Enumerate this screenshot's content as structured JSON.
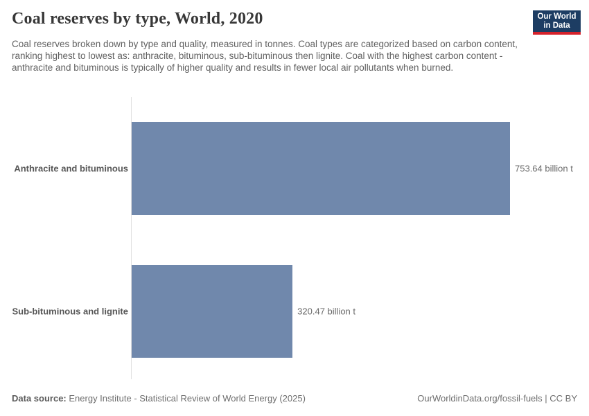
{
  "header": {
    "title": "Coal reserves by type, World, 2020",
    "subtitle": "Coal reserves broken down by type and quality, measured in tonnes. Coal types are categorized based on carbon content, ranking highest to lowest as: anthracite, bituminous, sub-bituminous then lignite. Coal with the highest carbon content - anthracite and bituminous is typically of higher quality and results in fewer local air pollutants when burned.",
    "logo": {
      "line1": "Our World",
      "line2": "in Data",
      "bg_color": "#1d3d63",
      "accent_color": "#d5222b"
    }
  },
  "chart_data": {
    "type": "bar",
    "orientation": "horizontal",
    "title": "Coal reserves by type, World, 2020",
    "unit": "billion t",
    "categories": [
      "Anthracite and bituminous",
      "Sub-bituminous and lignite"
    ],
    "values": [
      753.64,
      320.47
    ],
    "value_labels": [
      "753.64 billion t",
      "320.47 billion t"
    ],
    "xlim": [
      0,
      753.64
    ],
    "bar_color": "#7088ac",
    "axis_color": "#e0e0e0",
    "grid": false,
    "legend": "none"
  },
  "footer": {
    "source_label": "Data source:",
    "source_text": "Energy Institute - Statistical Review of World Energy (2025)",
    "right_text": "OurWorldinData.org/fossil-fuels | CC BY"
  }
}
